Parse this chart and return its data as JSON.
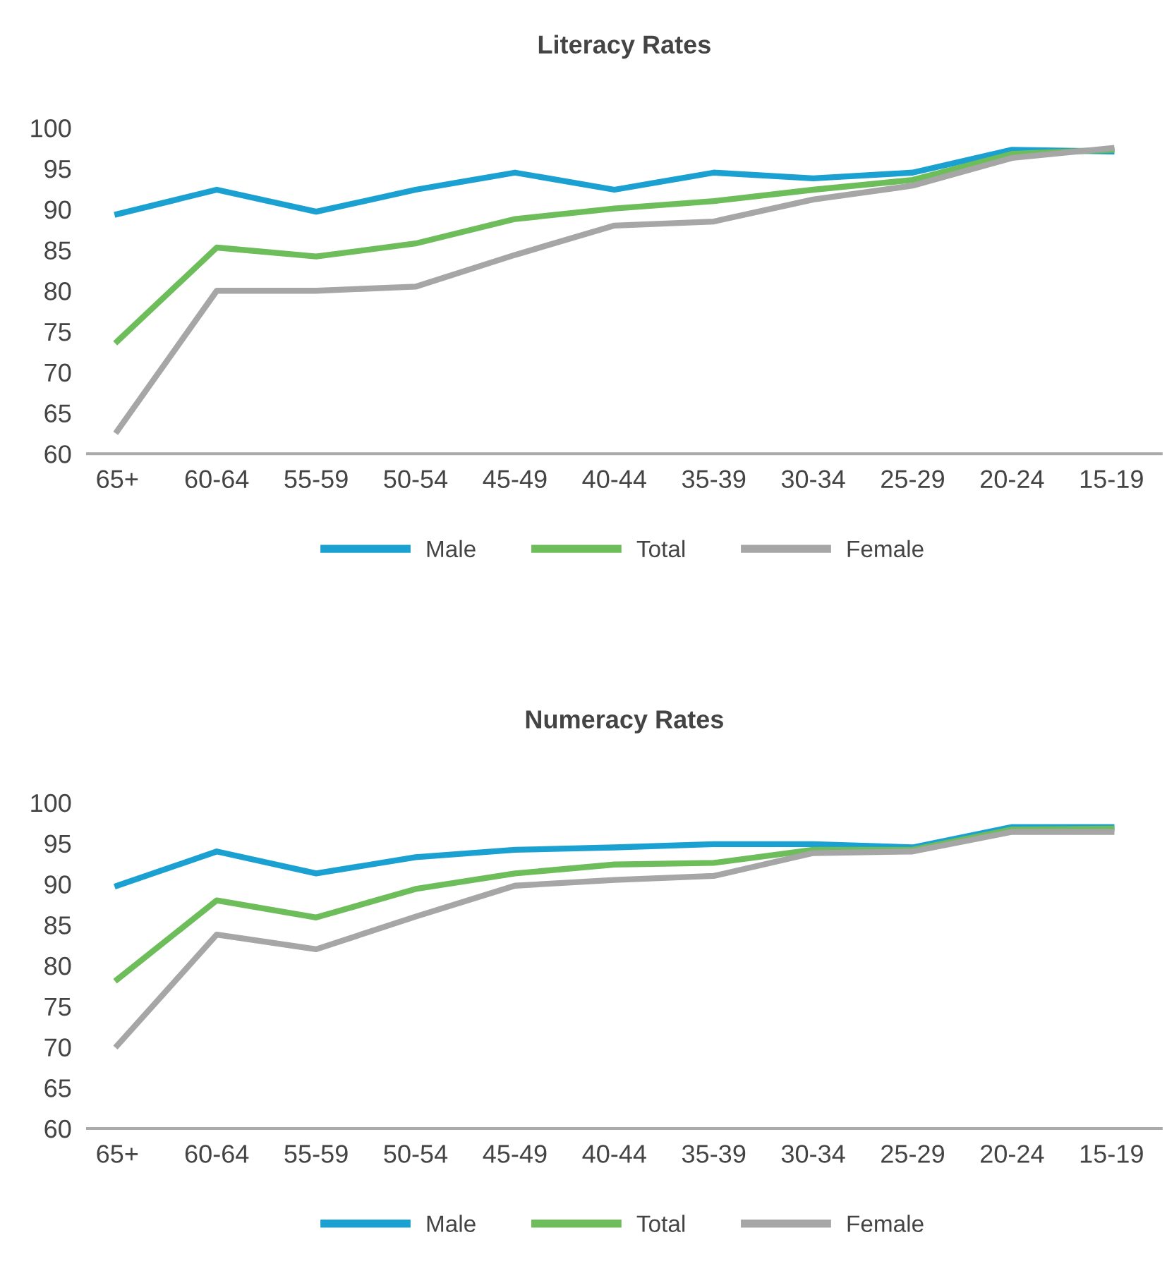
{
  "chart_data": [
    {
      "type": "line",
      "title": "Literacy Rates",
      "categories": [
        "65+",
        "60-64",
        "55-59",
        "50-54",
        "45-49",
        "40-44",
        "35-39",
        "30-34",
        "25-29",
        "20-24",
        "15-19"
      ],
      "series": [
        {
          "name": "Male",
          "color": "#1ba1d1",
          "values": [
            89.4,
            92.4,
            89.7,
            92.4,
            94.5,
            92.4,
            94.5,
            93.8,
            94.5,
            97.3,
            97.1
          ]
        },
        {
          "name": "Total",
          "color": "#6dbd5a",
          "values": [
            73.8,
            85.3,
            84.2,
            85.8,
            88.8,
            90.1,
            91,
            92.4,
            93.6,
            96.8,
            97.3
          ]
        },
        {
          "name": "Female",
          "color": "#a6a6a6",
          "values": [
            62.8,
            80,
            80,
            80.5,
            84.4,
            88,
            88.5,
            91.2,
            92.9,
            96.3,
            97.5
          ]
        }
      ],
      "ylim": [
        60,
        100
      ],
      "yticks": [
        60,
        65,
        70,
        75,
        80,
        85,
        90,
        95,
        100
      ],
      "grid": false,
      "legend": "bottom",
      "marker": "none",
      "line_style": "solid"
    },
    {
      "type": "line",
      "title": "Numeracy Rates",
      "categories": [
        "65+",
        "60-64",
        "55-59",
        "50-54",
        "45-49",
        "40-44",
        "35-39",
        "30-34",
        "25-29",
        "20-24",
        "15-19"
      ],
      "series": [
        {
          "name": "Male",
          "color": "#1ba1d1",
          "values": [
            89.8,
            94,
            91.3,
            93.3,
            94.2,
            94.5,
            94.9,
            94.9,
            94.5,
            97,
            97
          ]
        },
        {
          "name": "Total",
          "color": "#6dbd5a",
          "values": [
            78.3,
            88,
            85.9,
            89.4,
            91.3,
            92.4,
            92.6,
            94.2,
            94.2,
            96.7,
            96.8
          ]
        },
        {
          "name": "Female",
          "color": "#a6a6a6",
          "values": [
            70.2,
            83.8,
            82,
            86,
            89.8,
            90.5,
            91,
            93.8,
            94,
            96.4,
            96.4
          ]
        }
      ],
      "ylim": [
        60,
        100
      ],
      "yticks": [
        60,
        65,
        70,
        75,
        80,
        85,
        90,
        95,
        100
      ],
      "grid": false,
      "legend": "bottom",
      "marker": "none",
      "line_style": "solid"
    }
  ]
}
